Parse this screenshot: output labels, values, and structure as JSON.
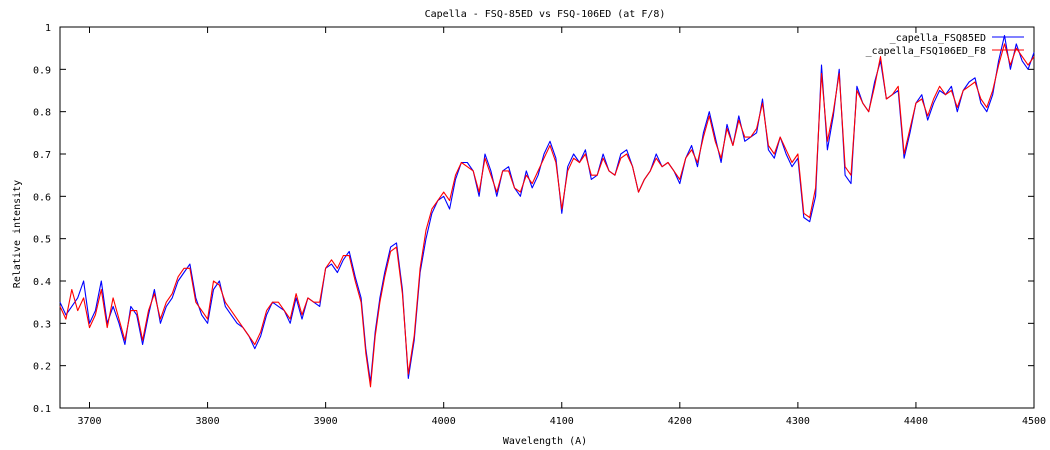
{
  "chart_data": {
    "type": "line",
    "title": "Capella - FSQ-85ED vs FSQ-106ED (at F/8)",
    "xlabel": "Wavelength (A)",
    "ylabel": "Relative intensity",
    "xlim": [
      3675,
      4500
    ],
    "ylim": [
      0.1,
      1.0
    ],
    "x_ticks": [
      3700,
      3800,
      3900,
      4000,
      4100,
      4200,
      4300,
      4400,
      4500
    ],
    "y_ticks": [
      0.1,
      0.2,
      0.3,
      0.4,
      0.5,
      0.6,
      0.7,
      0.8,
      0.9,
      1
    ],
    "grid": false,
    "legend_position": "top-right",
    "series": [
      {
        "name": "_capella_FSQ85ED",
        "color": "#0000ff",
        "x": [
          3675,
          3680,
          3685,
          3690,
          3695,
          3700,
          3705,
          3710,
          3715,
          3720,
          3725,
          3730,
          3735,
          3740,
          3745,
          3750,
          3755,
          3760,
          3765,
          3770,
          3775,
          3780,
          3785,
          3790,
          3795,
          3800,
          3805,
          3810,
          3815,
          3820,
          3825,
          3830,
          3835,
          3840,
          3845,
          3850,
          3855,
          3860,
          3865,
          3870,
          3875,
          3880,
          3885,
          3890,
          3895,
          3900,
          3905,
          3910,
          3915,
          3920,
          3925,
          3930,
          3934,
          3938,
          3942,
          3946,
          3950,
          3955,
          3960,
          3965,
          3970,
          3975,
          3980,
          3985,
          3990,
          3995,
          4000,
          4005,
          4010,
          4015,
          4020,
          4025,
          4030,
          4035,
          4040,
          4045,
          4050,
          4055,
          4060,
          4065,
          4070,
          4075,
          4080,
          4085,
          4090,
          4095,
          4100,
          4105,
          4110,
          4115,
          4120,
          4125,
          4130,
          4135,
          4140,
          4145,
          4150,
          4155,
          4160,
          4165,
          4170,
          4175,
          4180,
          4185,
          4190,
          4195,
          4200,
          4205,
          4210,
          4215,
          4220,
          4225,
          4230,
          4235,
          4240,
          4245,
          4250,
          4255,
          4260,
          4265,
          4270,
          4275,
          4280,
          4285,
          4290,
          4295,
          4300,
          4305,
          4310,
          4315,
          4320,
          4325,
          4330,
          4335,
          4340,
          4345,
          4350,
          4355,
          4360,
          4365,
          4370,
          4375,
          4380,
          4385,
          4390,
          4395,
          4400,
          4405,
          4410,
          4415,
          4420,
          4425,
          4430,
          4435,
          4440,
          4445,
          4450,
          4455,
          4460,
          4465,
          4470,
          4475,
          4480,
          4485,
          4490,
          4495,
          4500
        ],
        "y": [
          0.35,
          0.32,
          0.34,
          0.36,
          0.4,
          0.3,
          0.33,
          0.4,
          0.3,
          0.34,
          0.3,
          0.25,
          0.34,
          0.32,
          0.25,
          0.32,
          0.38,
          0.3,
          0.34,
          0.36,
          0.4,
          0.42,
          0.44,
          0.36,
          0.32,
          0.3,
          0.38,
          0.4,
          0.34,
          0.32,
          0.3,
          0.29,
          0.27,
          0.24,
          0.27,
          0.32,
          0.35,
          0.34,
          0.33,
          0.3,
          0.36,
          0.31,
          0.36,
          0.35,
          0.34,
          0.43,
          0.44,
          0.42,
          0.45,
          0.47,
          0.41,
          0.36,
          0.24,
          0.16,
          0.28,
          0.36,
          0.42,
          0.48,
          0.49,
          0.38,
          0.17,
          0.26,
          0.42,
          0.5,
          0.56,
          0.59,
          0.6,
          0.57,
          0.64,
          0.68,
          0.68,
          0.66,
          0.6,
          0.7,
          0.66,
          0.6,
          0.66,
          0.67,
          0.62,
          0.6,
          0.66,
          0.62,
          0.65,
          0.7,
          0.73,
          0.69,
          0.56,
          0.67,
          0.7,
          0.68,
          0.71,
          0.64,
          0.65,
          0.7,
          0.66,
          0.65,
          0.7,
          0.71,
          0.67,
          0.61,
          0.64,
          0.66,
          0.7,
          0.67,
          0.68,
          0.66,
          0.63,
          0.69,
          0.72,
          0.67,
          0.75,
          0.8,
          0.74,
          0.68,
          0.77,
          0.72,
          0.79,
          0.73,
          0.74,
          0.75,
          0.83,
          0.71,
          0.69,
          0.74,
          0.7,
          0.67,
          0.69,
          0.55,
          0.54,
          0.6,
          0.91,
          0.71,
          0.79,
          0.9,
          0.65,
          0.63,
          0.86,
          0.82,
          0.8,
          0.87,
          0.92,
          0.83,
          0.84,
          0.85,
          0.69,
          0.75,
          0.82,
          0.84,
          0.78,
          0.82,
          0.85,
          0.84,
          0.86,
          0.8,
          0.85,
          0.87,
          0.88,
          0.82,
          0.8,
          0.84,
          0.92,
          0.98,
          0.9,
          0.96,
          0.92,
          0.9,
          0.94
        ]
      },
      {
        "name": "_capella_FSQ106ED_F8",
        "color": "#ff0000",
        "x": [
          3675,
          3680,
          3685,
          3690,
          3695,
          3700,
          3705,
          3710,
          3715,
          3720,
          3725,
          3730,
          3735,
          3740,
          3745,
          3750,
          3755,
          3760,
          3765,
          3770,
          3775,
          3780,
          3785,
          3790,
          3795,
          3800,
          3805,
          3810,
          3815,
          3820,
          3825,
          3830,
          3835,
          3840,
          3845,
          3850,
          3855,
          3860,
          3865,
          3870,
          3875,
          3880,
          3885,
          3890,
          3895,
          3900,
          3905,
          3910,
          3915,
          3920,
          3925,
          3930,
          3934,
          3938,
          3942,
          3946,
          3950,
          3955,
          3960,
          3965,
          3970,
          3975,
          3980,
          3985,
          3990,
          3995,
          4000,
          4005,
          4010,
          4015,
          4020,
          4025,
          4030,
          4035,
          4040,
          4045,
          4050,
          4055,
          4060,
          4065,
          4070,
          4075,
          4080,
          4085,
          4090,
          4095,
          4100,
          4105,
          4110,
          4115,
          4120,
          4125,
          4130,
          4135,
          4140,
          4145,
          4150,
          4155,
          4160,
          4165,
          4170,
          4175,
          4180,
          4185,
          4190,
          4195,
          4200,
          4205,
          4210,
          4215,
          4220,
          4225,
          4230,
          4235,
          4240,
          4245,
          4250,
          4255,
          4260,
          4265,
          4270,
          4275,
          4280,
          4285,
          4290,
          4295,
          4300,
          4305,
          4310,
          4315,
          4320,
          4325,
          4330,
          4335,
          4340,
          4345,
          4350,
          4355,
          4360,
          4365,
          4370,
          4375,
          4380,
          4385,
          4390,
          4395,
          4400,
          4405,
          4410,
          4415,
          4420,
          4425,
          4430,
          4435,
          4440,
          4445,
          4450,
          4455,
          4460,
          4465,
          4470,
          4475,
          4480,
          4485,
          4490,
          4495,
          4500
        ],
        "y": [
          0.34,
          0.31,
          0.38,
          0.33,
          0.36,
          0.29,
          0.32,
          0.38,
          0.29,
          0.36,
          0.31,
          0.26,
          0.33,
          0.33,
          0.26,
          0.33,
          0.37,
          0.31,
          0.35,
          0.37,
          0.41,
          0.43,
          0.43,
          0.35,
          0.33,
          0.31,
          0.4,
          0.39,
          0.35,
          0.33,
          0.31,
          0.29,
          0.27,
          0.25,
          0.28,
          0.33,
          0.35,
          0.35,
          0.33,
          0.31,
          0.37,
          0.32,
          0.36,
          0.35,
          0.35,
          0.43,
          0.45,
          0.43,
          0.46,
          0.46,
          0.4,
          0.35,
          0.23,
          0.15,
          0.27,
          0.35,
          0.41,
          0.47,
          0.48,
          0.37,
          0.18,
          0.27,
          0.43,
          0.52,
          0.57,
          0.59,
          0.61,
          0.59,
          0.65,
          0.68,
          0.67,
          0.66,
          0.61,
          0.69,
          0.65,
          0.61,
          0.66,
          0.66,
          0.62,
          0.61,
          0.65,
          0.63,
          0.66,
          0.69,
          0.72,
          0.68,
          0.57,
          0.66,
          0.69,
          0.68,
          0.7,
          0.65,
          0.65,
          0.69,
          0.66,
          0.65,
          0.69,
          0.7,
          0.67,
          0.61,
          0.64,
          0.66,
          0.69,
          0.67,
          0.68,
          0.66,
          0.64,
          0.69,
          0.71,
          0.68,
          0.74,
          0.79,
          0.73,
          0.69,
          0.76,
          0.72,
          0.78,
          0.74,
          0.74,
          0.76,
          0.82,
          0.72,
          0.7,
          0.74,
          0.71,
          0.68,
          0.7,
          0.56,
          0.55,
          0.62,
          0.89,
          0.73,
          0.8,
          0.89,
          0.67,
          0.65,
          0.85,
          0.82,
          0.8,
          0.86,
          0.93,
          0.83,
          0.84,
          0.86,
          0.7,
          0.76,
          0.82,
          0.83,
          0.79,
          0.83,
          0.86,
          0.84,
          0.85,
          0.81,
          0.85,
          0.86,
          0.87,
          0.83,
          0.81,
          0.85,
          0.91,
          0.96,
          0.91,
          0.95,
          0.93,
          0.91,
          0.93
        ]
      }
    ]
  }
}
